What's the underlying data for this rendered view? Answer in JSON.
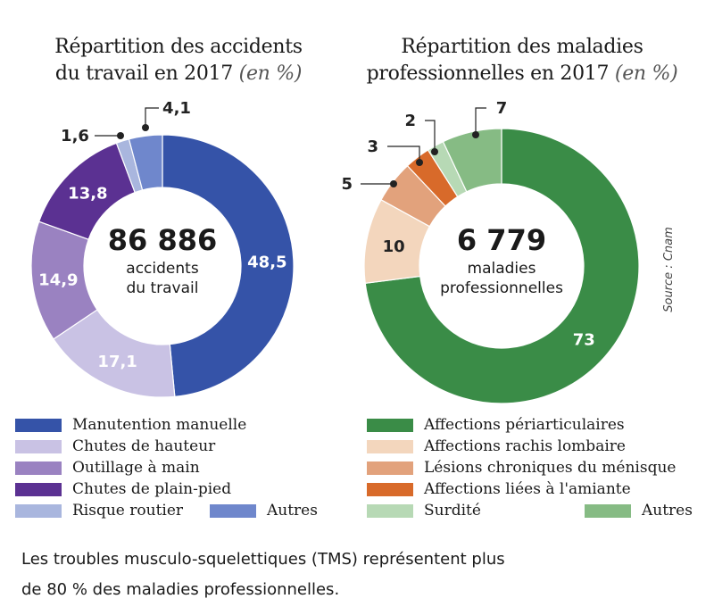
{
  "chart_data": [
    {
      "type": "pie",
      "title": "Répartition des accidents du travail en 2017",
      "title_unit": "(en %)",
      "center_value": "86 886",
      "center_label": [
        "accidents",
        "du travail"
      ],
      "series": [
        {
          "name": "Manutention manuelle",
          "value": 48.5,
          "label": "48,5",
          "color": "#3553a8"
        },
        {
          "name": "Chutes de hauteur",
          "value": 17.1,
          "label": "17,1",
          "color": "#c9c2e4"
        },
        {
          "name": "Outillage à main",
          "value": 14.9,
          "label": "14,9",
          "color": "#9a82c1"
        },
        {
          "name": "Chutes de plain-pied",
          "value": 13.8,
          "label": "13,8",
          "color": "#5b3192"
        },
        {
          "name": "Risque routier",
          "value": 1.6,
          "label": "1,6",
          "color": "#a9b6de"
        },
        {
          "name": "Autres",
          "value": 4.1,
          "label": "4,1",
          "color": "#6f87cc"
        }
      ]
    },
    {
      "type": "pie",
      "title": "Répartition des maladies professionnelles en 2017",
      "title_unit": "(en %)",
      "center_value": "6 779",
      "center_label": [
        "maladies",
        "professionnelles"
      ],
      "series": [
        {
          "name": "Affections périarticulaires",
          "value": 73,
          "label": "73",
          "color": "#3a8c47"
        },
        {
          "name": "Affections rachis lombaire",
          "value": 10,
          "label": "10",
          "color": "#f3d6bd"
        },
        {
          "name": "Lésions chroniques du ménisque",
          "value": 5,
          "label": "5",
          "color": "#e2a27c"
        },
        {
          "name": "Affections liées à l'amiante",
          "value": 3,
          "label": "3",
          "color": "#d86a2a"
        },
        {
          "name": "Surdité",
          "value": 2,
          "label": "2",
          "color": "#b7d9b5"
        },
        {
          "name": "Autres",
          "value": 7,
          "label": "7",
          "color": "#86bb84"
        }
      ]
    }
  ],
  "titles": {
    "left_line1": "Répartition des accidents",
    "left_line2": "du travail en 2017",
    "left_unit": "(en %)",
    "right_line1": "Répartition des maladies",
    "right_line2": "professionnelles en 2017",
    "right_unit": "(en %)"
  },
  "source": "Source : Cnam",
  "footnote": [
    "Les troubles musculo-squelettiques (TMS) représentent plus",
    "de 80 % des maladies professionnelles."
  ]
}
